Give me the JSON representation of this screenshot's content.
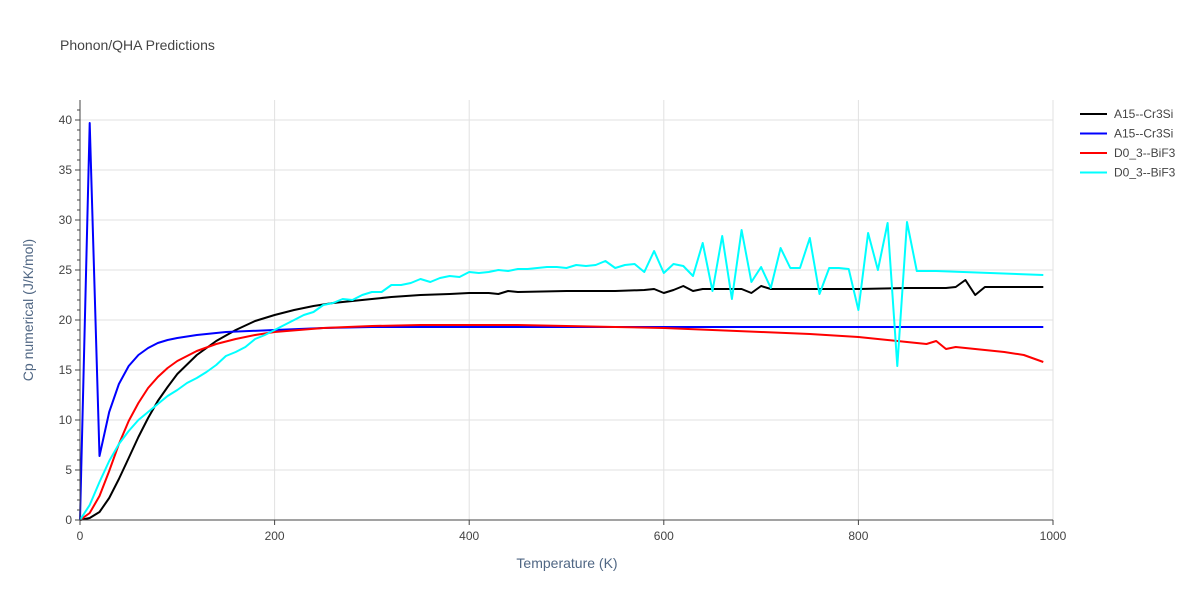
{
  "chart_data": {
    "type": "line",
    "title": "Phonon/QHA Predictions",
    "xlabel": "Temperature (K)",
    "ylabel": "Cp numerical (J/K/mol)",
    "xlim": [
      0,
      1000
    ],
    "ylim": [
      0,
      42
    ],
    "xticks": [
      0,
      200,
      400,
      600,
      800,
      1000
    ],
    "yticks": [
      0,
      5,
      10,
      15,
      20,
      25,
      30,
      35,
      40
    ],
    "grid": true,
    "legend_position": "top-right",
    "series": [
      {
        "name": "A15--Cr3Si",
        "color": "#000000",
        "points": [
          [
            0,
            0
          ],
          [
            10,
            0.2
          ],
          [
            20,
            0.8
          ],
          [
            30,
            2.2
          ],
          [
            40,
            4.1
          ],
          [
            50,
            6.2
          ],
          [
            60,
            8.3
          ],
          [
            70,
            10.2
          ],
          [
            80,
            11.9
          ],
          [
            90,
            13.3
          ],
          [
            100,
            14.6
          ],
          [
            120,
            16.5
          ],
          [
            140,
            17.9
          ],
          [
            160,
            19.0
          ],
          [
            180,
            19.9
          ],
          [
            200,
            20.5
          ],
          [
            220,
            21.0
          ],
          [
            240,
            21.4
          ],
          [
            260,
            21.7
          ],
          [
            280,
            21.9
          ],
          [
            300,
            22.1
          ],
          [
            320,
            22.3
          ],
          [
            350,
            22.5
          ],
          [
            380,
            22.6
          ],
          [
            400,
            22.7
          ],
          [
            420,
            22.7
          ],
          [
            430,
            22.6
          ],
          [
            440,
            22.9
          ],
          [
            450,
            22.8
          ],
          [
            500,
            22.9
          ],
          [
            550,
            22.9
          ],
          [
            580,
            23.0
          ],
          [
            590,
            23.1
          ],
          [
            600,
            22.7
          ],
          [
            610,
            23.0
          ],
          [
            620,
            23.4
          ],
          [
            630,
            22.9
          ],
          [
            640,
            23.1
          ],
          [
            660,
            23.1
          ],
          [
            680,
            23.1
          ],
          [
            690,
            22.7
          ],
          [
            700,
            23.4
          ],
          [
            710,
            23.1
          ],
          [
            750,
            23.1
          ],
          [
            800,
            23.1
          ],
          [
            850,
            23.2
          ],
          [
            870,
            23.2
          ],
          [
            890,
            23.2
          ],
          [
            900,
            23.3
          ],
          [
            910,
            24.0
          ],
          [
            920,
            22.5
          ],
          [
            930,
            23.3
          ],
          [
            950,
            23.3
          ],
          [
            990,
            23.3
          ]
        ]
      },
      {
        "name": "A15--Cr3Si",
        "color": "#0000ff",
        "points": [
          [
            0,
            0
          ],
          [
            10,
            39.7
          ],
          [
            20,
            6.4
          ],
          [
            30,
            10.8
          ],
          [
            40,
            13.6
          ],
          [
            50,
            15.4
          ],
          [
            60,
            16.5
          ],
          [
            70,
            17.2
          ],
          [
            80,
            17.7
          ],
          [
            90,
            18.0
          ],
          [
            100,
            18.2
          ],
          [
            120,
            18.5
          ],
          [
            150,
            18.8
          ],
          [
            200,
            19.0
          ],
          [
            250,
            19.2
          ],
          [
            300,
            19.3
          ],
          [
            400,
            19.3
          ],
          [
            500,
            19.3
          ],
          [
            600,
            19.3
          ],
          [
            700,
            19.3
          ],
          [
            800,
            19.3
          ],
          [
            900,
            19.3
          ],
          [
            990,
            19.3
          ]
        ]
      },
      {
        "name": "D0_3--BiF3",
        "color": "#ff0000",
        "points": [
          [
            0,
            0
          ],
          [
            10,
            0.7
          ],
          [
            20,
            2.4
          ],
          [
            30,
            4.9
          ],
          [
            40,
            7.6
          ],
          [
            50,
            9.9
          ],
          [
            60,
            11.7
          ],
          [
            70,
            13.2
          ],
          [
            80,
            14.3
          ],
          [
            90,
            15.2
          ],
          [
            100,
            15.9
          ],
          [
            120,
            16.9
          ],
          [
            140,
            17.6
          ],
          [
            160,
            18.1
          ],
          [
            180,
            18.5
          ],
          [
            200,
            18.8
          ],
          [
            250,
            19.2
          ],
          [
            300,
            19.4
          ],
          [
            350,
            19.5
          ],
          [
            400,
            19.5
          ],
          [
            450,
            19.5
          ],
          [
            500,
            19.4
          ],
          [
            550,
            19.3
          ],
          [
            600,
            19.2
          ],
          [
            650,
            19.0
          ],
          [
            700,
            18.8
          ],
          [
            750,
            18.6
          ],
          [
            800,
            18.3
          ],
          [
            850,
            17.8
          ],
          [
            870,
            17.6
          ],
          [
            880,
            17.9
          ],
          [
            890,
            17.1
          ],
          [
            900,
            17.3
          ],
          [
            950,
            16.8
          ],
          [
            970,
            16.5
          ],
          [
            990,
            15.8
          ]
        ]
      },
      {
        "name": "D0_3--BiF3",
        "color": "#00ffff",
        "points": [
          [
            0,
            0
          ],
          [
            10,
            1.5
          ],
          [
            20,
            3.8
          ],
          [
            30,
            5.9
          ],
          [
            40,
            7.6
          ],
          [
            50,
            8.9
          ],
          [
            60,
            10.0
          ],
          [
            70,
            10.8
          ],
          [
            80,
            11.6
          ],
          [
            90,
            12.4
          ],
          [
            100,
            13.0
          ],
          [
            110,
            13.7
          ],
          [
            120,
            14.2
          ],
          [
            130,
            14.8
          ],
          [
            140,
            15.5
          ],
          [
            150,
            16.4
          ],
          [
            160,
            16.8
          ],
          [
            170,
            17.3
          ],
          [
            180,
            18.1
          ],
          [
            190,
            18.5
          ],
          [
            200,
            19.0
          ],
          [
            210,
            19.5
          ],
          [
            220,
            20.0
          ],
          [
            230,
            20.5
          ],
          [
            240,
            20.8
          ],
          [
            250,
            21.5
          ],
          [
            260,
            21.7
          ],
          [
            270,
            22.1
          ],
          [
            280,
            22.0
          ],
          [
            290,
            22.5
          ],
          [
            300,
            22.8
          ],
          [
            310,
            22.8
          ],
          [
            320,
            23.5
          ],
          [
            330,
            23.5
          ],
          [
            340,
            23.7
          ],
          [
            350,
            24.1
          ],
          [
            360,
            23.8
          ],
          [
            370,
            24.2
          ],
          [
            380,
            24.4
          ],
          [
            390,
            24.3
          ],
          [
            400,
            24.8
          ],
          [
            410,
            24.7
          ],
          [
            420,
            24.8
          ],
          [
            430,
            25.0
          ],
          [
            440,
            24.9
          ],
          [
            450,
            25.1
          ],
          [
            460,
            25.1
          ],
          [
            470,
            25.2
          ],
          [
            480,
            25.3
          ],
          [
            490,
            25.3
          ],
          [
            500,
            25.2
          ],
          [
            510,
            25.5
          ],
          [
            520,
            25.4
          ],
          [
            530,
            25.5
          ],
          [
            540,
            25.9
          ],
          [
            550,
            25.2
          ],
          [
            560,
            25.5
          ],
          [
            570,
            25.6
          ],
          [
            580,
            24.8
          ],
          [
            590,
            26.9
          ],
          [
            600,
            24.7
          ],
          [
            610,
            25.6
          ],
          [
            620,
            25.4
          ],
          [
            630,
            24.4
          ],
          [
            640,
            27.7
          ],
          [
            650,
            22.9
          ],
          [
            660,
            28.4
          ],
          [
            670,
            22.1
          ],
          [
            680,
            29.0
          ],
          [
            690,
            23.8
          ],
          [
            700,
            25.3
          ],
          [
            710,
            23.2
          ],
          [
            720,
            27.2
          ],
          [
            730,
            25.2
          ],
          [
            740,
            25.2
          ],
          [
            750,
            28.2
          ],
          [
            760,
            22.6
          ],
          [
            770,
            25.2
          ],
          [
            780,
            25.2
          ],
          [
            790,
            25.1
          ],
          [
            800,
            21.0
          ],
          [
            810,
            28.7
          ],
          [
            820,
            25.0
          ],
          [
            830,
            29.7
          ],
          [
            840,
            15.4
          ],
          [
            850,
            29.8
          ],
          [
            860,
            24.9
          ],
          [
            870,
            24.9
          ],
          [
            880,
            24.9
          ],
          [
            990,
            24.5
          ]
        ]
      }
    ]
  }
}
